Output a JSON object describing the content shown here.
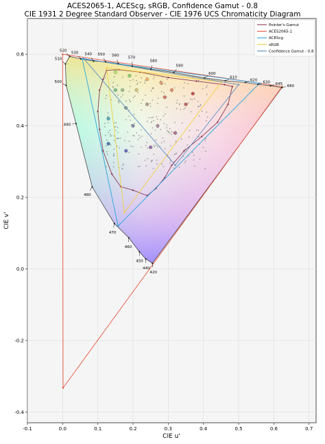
{
  "chart_data": {
    "type": "scatter",
    "title": "ACES2065-1, ACEScg, sRGB, Confidence Gamut - 0.8",
    "subtitle": "CIE 1931 2 Degree Standard Observer - CIE 1976 UCS Chromaticity Diagram",
    "xlabel": "CIE u'",
    "ylabel": "CIE v'",
    "xlim": [
      -0.1,
      0.72
    ],
    "ylim": [
      -0.43,
      0.7
    ],
    "grid": true,
    "legend_position": "top-right",
    "x_ticks": [
      "-0.1",
      "0.0",
      "0.1",
      "0.2",
      "0.3",
      "0.4",
      "0.5",
      "0.6",
      "0.7"
    ],
    "y_ticks": [
      "-0.4",
      "-0.2",
      "0.0",
      "0.2",
      "0.4",
      "0.6"
    ],
    "spectral_locus": [
      {
        "label": "420",
        "u": 0.255,
        "v": 0.016
      },
      {
        "label": "440",
        "u": 0.236,
        "v": 0.028
      },
      {
        "label": "450",
        "u": 0.218,
        "v": 0.048
      },
      {
        "label": "460",
        "u": 0.188,
        "v": 0.087
      },
      {
        "label": "470",
        "u": 0.147,
        "v": 0.127
      },
      {
        "label": "480",
        "u": 0.084,
        "v": 0.229
      },
      {
        "label": "490",
        "u": 0.038,
        "v": 0.406
      },
      {
        "label": "500",
        "u": 0.01,
        "v": 0.513
      },
      {
        "label": "510",
        "u": 0.008,
        "v": 0.573
      },
      {
        "label": "520",
        "u": 0.02,
        "v": 0.594
      },
      {
        "label": "530",
        "u": 0.052,
        "v": 0.587
      },
      {
        "label": "540",
        "u": 0.088,
        "v": 0.581
      },
      {
        "label": "550",
        "u": 0.122,
        "v": 0.579
      },
      {
        "label": "560",
        "u": 0.158,
        "v": 0.574
      },
      {
        "label": "570",
        "u": 0.198,
        "v": 0.567
      },
      {
        "label": "580",
        "u": 0.251,
        "v": 0.558
      },
      {
        "label": "590",
        "u": 0.316,
        "v": 0.549
      },
      {
        "label": "600",
        "u": 0.403,
        "v": 0.534
      },
      {
        "label": "610",
        "u": 0.462,
        "v": 0.526
      },
      {
        "label": "620",
        "u": 0.519,
        "v": 0.521
      },
      {
        "label": "630",
        "u": 0.555,
        "v": 0.516
      },
      {
        "label": "645",
        "u": 0.59,
        "v": 0.512
      },
      {
        "label": "680",
        "u": 0.623,
        "v": 0.507
      }
    ],
    "series": [
      {
        "name": "Pointer's Gamut",
        "color": "#8a3a55",
        "points": [
          [
            0.125,
            0.555
          ],
          [
            0.16,
            0.557
          ],
          [
            0.22,
            0.55
          ],
          [
            0.3,
            0.535
          ],
          [
            0.38,
            0.525
          ],
          [
            0.46,
            0.515
          ],
          [
            0.482,
            0.51
          ],
          [
            0.47,
            0.46
          ],
          [
            0.44,
            0.41
          ],
          [
            0.395,
            0.37
          ],
          [
            0.345,
            0.33
          ],
          [
            0.31,
            0.29
          ],
          [
            0.29,
            0.255
          ],
          [
            0.265,
            0.225
          ],
          [
            0.24,
            0.205
          ],
          [
            0.2,
            0.22
          ],
          [
            0.165,
            0.23
          ],
          [
            0.14,
            0.265
          ],
          [
            0.115,
            0.33
          ],
          [
            0.105,
            0.39
          ],
          [
            0.1,
            0.44
          ],
          [
            0.105,
            0.5
          ],
          [
            0.115,
            0.53
          ]
        ]
      },
      {
        "name": "ACES2065-1",
        "color": "#e8553e",
        "points": [
          [
            0.6237,
            0.5098
          ],
          [
            0.0,
            0.6
          ],
          [
            0.0013,
            -0.3325
          ]
        ]
      },
      {
        "name": "ACEScg",
        "color": "#29a3dc",
        "points": [
          [
            0.5595,
            0.5192
          ],
          [
            0.0559,
            0.587
          ],
          [
            0.1574,
            0.1203
          ]
        ]
      },
      {
        "name": "sRGB",
        "color": "#f4d03f",
        "points": [
          [
            0.4507,
            0.5229
          ],
          [
            0.125,
            0.5625
          ],
          [
            0.1754,
            0.1579
          ]
        ]
      },
      {
        "name": "Confidence Gamut - 0.8",
        "color": "#5a8fbf",
        "points": [
          [
            0.5,
            0.515
          ],
          [
            0.06,
            0.588
          ],
          [
            0.32,
            0.29
          ]
        ]
      }
    ]
  }
}
